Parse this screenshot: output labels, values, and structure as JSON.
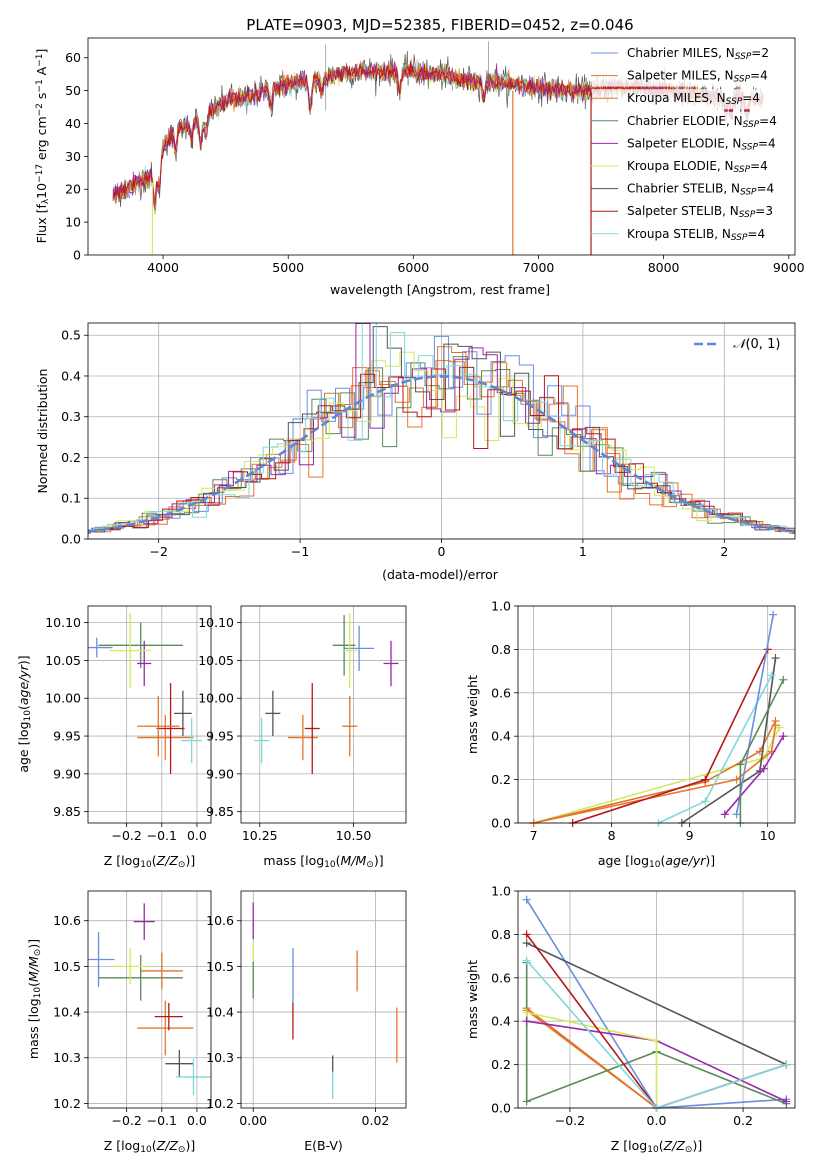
{
  "figure": {
    "title": "PLATE=0903, MJD=52385, FIBERID=0452, z=0.046"
  },
  "colors": {
    "Chabrier MILES": "#6a8fe0",
    "Salpeter MILES": "#e8762a",
    "Kroupa MILES": "#e0732c",
    "Chabrier ELODIE": "#5a8a5a",
    "Salpeter ELODIE": "#9b27b0",
    "Kroupa ELODIE": "#d4ea5c",
    "Chabrier STELIB": "#555555",
    "Salpeter STELIB": "#b41818",
    "Kroupa STELIB": "#7fd8dc"
  },
  "chart_data": [
    {
      "id": "spectrum",
      "type": "line",
      "xlabel": "wavelength [Angstrom, rest frame]",
      "ylabel": "Flux [f_λ10^-17 erg cm^-2 s^-1 A^-1]",
      "xlim": [
        3400,
        9050
      ],
      "ylim": [
        0,
        66
      ],
      "xticks": [
        4000,
        5000,
        6000,
        7000,
        8000,
        9000
      ],
      "yticks": [
        0,
        10,
        20,
        30,
        40,
        50,
        60
      ],
      "legend_position": "top-right",
      "series": [
        {
          "name": "Chabrier MILES, N_SSP=2"
        },
        {
          "name": "Salpeter MILES, N_SSP=4"
        },
        {
          "name": "Kroupa MILES, N_SSP=4"
        },
        {
          "name": "Chabrier ELODIE, N_SSP=4"
        },
        {
          "name": "Salpeter ELODIE, N_SSP=4"
        },
        {
          "name": "Kroupa ELODIE, N_SSP=4"
        },
        {
          "name": "Chabrier STELIB, N_SSP=4"
        },
        {
          "name": "Salpeter STELIB, N_SSP=3"
        },
        {
          "name": "Kroupa STELIB, N_SSP=4"
        }
      ],
      "continuum_x": [
        3600,
        3700,
        3800,
        3900,
        4000,
        4100,
        4200,
        4300,
        4400,
        4500,
        4600,
        4700,
        4800,
        4900,
        5000,
        5200,
        5400,
        5600,
        5800,
        6000,
        6200,
        6400,
        6600,
        6800,
        7000,
        7200,
        7400,
        7600,
        7800,
        8000,
        8200,
        8400,
        8600,
        8800
      ],
      "continuum_y": [
        18,
        20,
        22,
        24,
        33,
        38,
        40,
        42,
        44,
        47,
        48,
        48,
        50,
        51,
        52,
        53,
        55,
        56,
        56,
        56,
        55,
        53,
        53,
        52,
        51,
        50,
        50,
        51,
        51,
        50,
        49,
        48,
        48,
        47
      ]
    },
    {
      "id": "residuals",
      "type": "histogram",
      "xlabel": "(data-model)/error",
      "ylabel": "Normed distribution",
      "xlim": [
        -2.5,
        2.5
      ],
      "ylim": [
        0,
        0.53
      ],
      "xticks": [
        -2,
        -1,
        0,
        1,
        2
      ],
      "yticks": [
        0.0,
        0.1,
        0.2,
        0.3,
        0.4,
        0.5
      ],
      "grid": true,
      "legend_position": "top-right",
      "reference_curve": {
        "name": "𝒩(0,1)",
        "mean": 0,
        "sigma": 1
      }
    },
    {
      "id": "age-vs-Z",
      "type": "errorbar",
      "xlabel": "Z [log10(Z/Z☉)]",
      "ylabel": "age  [log10(age/yr)]",
      "xlim": [
        -0.31,
        0.04
      ],
      "ylim": [
        9.835,
        10.122
      ],
      "xticks": [
        -0.2,
        -0.1,
        0.0
      ],
      "yticks": [
        9.85,
        9.9,
        9.95,
        10.0,
        10.05,
        10.1
      ],
      "grid": true,
      "points": [
        {
          "model": "Chabrier MILES",
          "x": -0.285,
          "xerr": 0.045,
          "y": 10.067,
          "yerr": 0.013
        },
        {
          "model": "Salpeter MILES",
          "x": -0.09,
          "xerr": 0.08,
          "y": 9.948,
          "yerr": 0.03
        },
        {
          "model": "Chabrier ELODIE",
          "x": -0.16,
          "xerr": 0.12,
          "y": 10.07,
          "yerr": 0.03
        },
        {
          "model": "Salpeter ELODIE",
          "x": -0.15,
          "xerr": 0.02,
          "y": 10.046,
          "yerr": 0.03
        },
        {
          "model": "Kroupa ELODIE",
          "x": -0.19,
          "xerr": 0.06,
          "y": 10.063,
          "yerr": 0.05
        },
        {
          "model": "Salpeter STELIB",
          "x": -0.075,
          "xerr": 0.04,
          "y": 9.96,
          "yerr": 0.06
        },
        {
          "model": "Chabrier STELIB",
          "x": -0.04,
          "xerr": 0.025,
          "y": 9.98,
          "yerr": 0.03
        },
        {
          "model": "Kroupa STELIB",
          "x": -0.015,
          "xerr": 0.03,
          "y": 9.944,
          "yerr": 0.03
        },
        {
          "model": "Kroupa MILES",
          "x": -0.11,
          "xerr": 0.06,
          "y": 9.963,
          "yerr": 0.04
        }
      ]
    },
    {
      "id": "age-vs-mass",
      "type": "errorbar",
      "xlabel": "mass [log10(M/M☉)]",
      "xlim": [
        10.2,
        10.64
      ],
      "ylim": [
        9.835,
        10.122
      ],
      "xticks": [
        10.25,
        10.5
      ],
      "yticks": [
        9.85,
        9.9,
        9.95,
        10.0,
        10.05,
        10.1
      ],
      "grid": true,
      "points": [
        {
          "model": "Chabrier MILES",
          "x": 10.515,
          "xerr": 0.04,
          "y": 10.066,
          "yerr": 0.03
        },
        {
          "model": "Salpeter MILES",
          "x": 10.365,
          "xerr": 0.04,
          "y": 9.948,
          "yerr": 0.03
        },
        {
          "model": "Chabrier ELODIE",
          "x": 10.475,
          "xerr": 0.03,
          "y": 10.07,
          "yerr": 0.04
        },
        {
          "model": "Salpeter ELODIE",
          "x": 10.6,
          "xerr": 0.02,
          "y": 10.046,
          "yerr": 0.03
        },
        {
          "model": "Kroupa ELODIE",
          "x": 10.49,
          "xerr": 0.02,
          "y": 10.063,
          "yerr": 0.05
        },
        {
          "model": "Salpeter STELIB",
          "x": 10.39,
          "xerr": 0.02,
          "y": 9.96,
          "yerr": 0.06
        },
        {
          "model": "Chabrier STELIB",
          "x": 10.285,
          "xerr": 0.02,
          "y": 9.98,
          "yerr": 0.03
        },
        {
          "model": "Kroupa STELIB",
          "x": 10.255,
          "xerr": 0.02,
          "y": 9.944,
          "yerr": 0.03
        },
        {
          "model": "Kroupa MILES",
          "x": 10.49,
          "xerr": 0.02,
          "y": 9.963,
          "yerr": 0.04
        }
      ]
    },
    {
      "id": "weight-vs-age",
      "type": "line",
      "xlabel": "age  [log10(age/yr)]",
      "ylabel": "mass weight",
      "xlim": [
        6.8,
        10.35
      ],
      "ylim": [
        0,
        1.0
      ],
      "xticks": [
        7,
        8,
        9,
        10
      ],
      "yticks": [
        0.0,
        0.2,
        0.4,
        0.6,
        0.8,
        1.0
      ],
      "grid": true,
      "series": [
        {
          "model": "Kroupa ELODIE",
          "x": [
            7.0,
            9.95,
            10.15
          ],
          "y": [
            0.0,
            0.3,
            0.44
          ]
        },
        {
          "model": "Kroupa MILES",
          "x": [
            7.0,
            9.2,
            9.9,
            10.1
          ],
          "y": [
            0.0,
            0.19,
            0.33,
            0.47
          ]
        },
        {
          "model": "Salpeter MILES",
          "x": [
            7.0,
            9.6,
            10.05,
            10.1
          ],
          "y": [
            0.0,
            0.2,
            0.33,
            0.45
          ]
        },
        {
          "model": "Salpeter STELIB",
          "x": [
            7.5,
            9.2,
            10.0
          ],
          "y": [
            0.0,
            0.2,
            0.8
          ]
        },
        {
          "model": "Chabrier STELIB",
          "x": [
            8.9,
            9.9,
            10.1
          ],
          "y": [
            0.0,
            0.24,
            0.76
          ]
        },
        {
          "model": "Kroupa STELIB",
          "x": [
            8.6,
            9.2,
            10.05
          ],
          "y": [
            0.0,
            0.1,
            0.68
          ]
        },
        {
          "model": "Chabrier MILES",
          "x": [
            9.6,
            10.07
          ],
          "y": [
            0.04,
            0.96
          ]
        },
        {
          "model": "Salpeter ELODIE",
          "x": [
            9.45,
            9.95,
            10.2
          ],
          "y": [
            0.04,
            0.25,
            0.4
          ]
        },
        {
          "model": "Chabrier ELODIE",
          "x": [
            9.65,
            9.65,
            10.2
          ],
          "y": [
            0.0,
            0.27,
            0.66
          ]
        }
      ]
    },
    {
      "id": "mass-vs-Z",
      "type": "errorbar",
      "xlabel": "Z [log10(Z/Z☉)]",
      "ylabel": "mass [log10(M/M☉)]",
      "xlim": [
        -0.31,
        0.04
      ],
      "ylim": [
        10.19,
        10.665
      ],
      "xticks": [
        -0.2,
        -0.1,
        0.0
      ],
      "yticks": [
        10.2,
        10.3,
        10.4,
        10.5,
        10.6
      ],
      "grid": true,
      "points": [
        {
          "model": "Chabrier MILES",
          "x": -0.28,
          "xerr": 0.045,
          "y": 10.515,
          "yerr": 0.06
        },
        {
          "model": "Salpeter MILES",
          "x": -0.09,
          "xerr": 0.08,
          "y": 10.365,
          "yerr": 0.06
        },
        {
          "model": "Chabrier ELODIE",
          "x": -0.16,
          "xerr": 0.12,
          "y": 10.475,
          "yerr": 0.05
        },
        {
          "model": "Salpeter ELODIE",
          "x": -0.15,
          "xerr": 0.03,
          "y": 10.598,
          "yerr": 0.04
        },
        {
          "model": "Kroupa ELODIE",
          "x": -0.19,
          "xerr": 0.05,
          "y": 10.5,
          "yerr": 0.04
        },
        {
          "model": "Salpeter STELIB",
          "x": -0.08,
          "xerr": 0.04,
          "y": 10.39,
          "yerr": 0.03
        },
        {
          "model": "Chabrier STELIB",
          "x": -0.05,
          "xerr": 0.04,
          "y": 10.287,
          "yerr": 0.03
        },
        {
          "model": "Kroupa STELIB",
          "x": -0.01,
          "xerr": 0.05,
          "y": 10.258,
          "yerr": 0.04
        },
        {
          "model": "Kroupa MILES",
          "x": -0.1,
          "xerr": 0.06,
          "y": 10.49,
          "yerr": 0.04
        }
      ]
    },
    {
      "id": "mass-vs-EBV",
      "type": "errorbar",
      "xlabel": "E(B-V)",
      "xlim": [
        -0.002,
        0.025
      ],
      "ylim": [
        10.19,
        10.665
      ],
      "xticks": [
        0.0,
        0.02
      ],
      "yticks": [
        10.2,
        10.3,
        10.4,
        10.5,
        10.6
      ],
      "grid": true,
      "points": [
        {
          "model": "Salpeter ELODIE",
          "x": 0.0,
          "y": 10.6,
          "yerr": 0.04
        },
        {
          "model": "Kroupa ELODIE",
          "x": 0.0,
          "y": 10.5,
          "yerr": 0.05
        },
        {
          "model": "Chabrier ELODIE",
          "x": 0.0,
          "y": 10.47,
          "yerr": 0.04
        },
        {
          "model": "Chabrier MILES",
          "x": 0.0065,
          "y": 10.48,
          "yerr": 0.06
        },
        {
          "model": "Salpeter STELIB",
          "x": 0.0065,
          "y": 10.38,
          "yerr": 0.04
        },
        {
          "model": "Chabrier STELIB",
          "x": 0.013,
          "y": 10.285,
          "yerr": 0.02
        },
        {
          "model": "Kroupa STELIB",
          "x": 0.013,
          "y": 10.24,
          "yerr": 0.03
        },
        {
          "model": "Kroupa MILES",
          "x": 0.017,
          "y": 10.49,
          "yerr": 0.045
        },
        {
          "model": "Salpeter MILES",
          "x": 0.0235,
          "y": 10.35,
          "yerr": 0.06
        }
      ]
    },
    {
      "id": "weight-vs-Z",
      "type": "line",
      "xlabel": "Z [log10(Z/Z☉)]",
      "ylabel": "mass weight",
      "xlim": [
        -0.32,
        0.32
      ],
      "ylim": [
        0,
        1.0
      ],
      "xticks": [
        -0.2,
        0.0,
        0.2
      ],
      "yticks": [
        0.0,
        0.2,
        0.4,
        0.6,
        0.8,
        1.0
      ],
      "grid": true,
      "series": [
        {
          "model": "Chabrier MILES",
          "x": [
            -0.3,
            0.0,
            0.3
          ],
          "y": [
            0.96,
            0.0,
            0.04
          ]
        },
        {
          "model": "Salpeter MILES",
          "x": [
            -0.3,
            0.0
          ],
          "y": [
            0.45,
            0.0
          ]
        },
        {
          "model": "Kroupa MILES",
          "x": [
            -0.3,
            0.0
          ],
          "y": [
            0.46,
            0.0
          ]
        },
        {
          "model": "Chabrier ELODIE",
          "x": [
            -0.3,
            -0.3,
            0.0,
            0.3
          ],
          "y": [
            0.67,
            0.03,
            0.26,
            0.02
          ]
        },
        {
          "model": "Salpeter ELODIE",
          "x": [
            -0.3,
            0.0,
            0.3
          ],
          "y": [
            0.4,
            0.31,
            0.03
          ]
        },
        {
          "model": "Kroupa ELODIE",
          "x": [
            -0.3,
            0.0,
            0.0
          ],
          "y": [
            0.44,
            0.31,
            0.0
          ]
        },
        {
          "model": "Chabrier STELIB",
          "x": [
            -0.3,
            0.3
          ],
          "y": [
            0.76,
            0.2
          ]
        },
        {
          "model": "Salpeter STELIB",
          "x": [
            -0.3,
            0.0,
            0.3
          ],
          "y": [
            0.8,
            0.0,
            0.2
          ]
        },
        {
          "model": "Kroupa STELIB",
          "x": [
            -0.3,
            0.0,
            0.3
          ],
          "y": [
            0.68,
            0.0,
            0.2
          ]
        }
      ]
    }
  ]
}
